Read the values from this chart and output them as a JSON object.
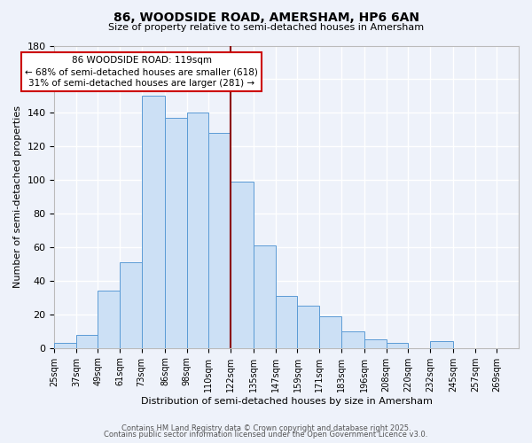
{
  "title": "86, WOODSIDE ROAD, AMERSHAM, HP6 6AN",
  "subtitle": "Size of property relative to semi-detached houses in Amersham",
  "xlabel": "Distribution of semi-detached houses by size in Amersham",
  "ylabel": "Number of semi-detached properties",
  "bin_labels": [
    "25sqm",
    "37sqm",
    "49sqm",
    "61sqm",
    "73sqm",
    "86sqm",
    "98sqm",
    "110sqm",
    "122sqm",
    "135sqm",
    "147sqm",
    "159sqm",
    "171sqm",
    "183sqm",
    "196sqm",
    "208sqm",
    "220sqm",
    "232sqm",
    "245sqm",
    "257sqm",
    "269sqm"
  ],
  "bar_heights": [
    3,
    8,
    34,
    51,
    150,
    137,
    140,
    128,
    99,
    61,
    31,
    25,
    19,
    10,
    5,
    3,
    0,
    4,
    0,
    0,
    0
  ],
  "bar_color": "#cce0f5",
  "bar_edge_color": "#5b9bd5",
  "property_line_color": "#8b0000",
  "annotation_title": "86 WOODSIDE ROAD: 119sqm",
  "annotation_line1": "← 68% of semi-detached houses are smaller (618)",
  "annotation_line2": "31% of semi-detached houses are larger (281) →",
  "annotation_box_color": "#ffffff",
  "annotation_box_edge": "#cc0000",
  "ylim": [
    0,
    180
  ],
  "yticks": [
    0,
    20,
    40,
    60,
    80,
    100,
    120,
    140,
    160,
    180
  ],
  "background_color": "#eef2fa",
  "grid_color": "#ffffff",
  "footer1": "Contains HM Land Registry data © Crown copyright and database right 2025.",
  "footer2": "Contains public sector information licensed under the Open Government Licence v3.0.",
  "bin_edges": [
    25,
    37,
    49,
    61,
    73,
    86,
    98,
    110,
    122,
    135,
    147,
    159,
    171,
    183,
    196,
    208,
    220,
    232,
    245,
    257,
    269,
    281
  ]
}
